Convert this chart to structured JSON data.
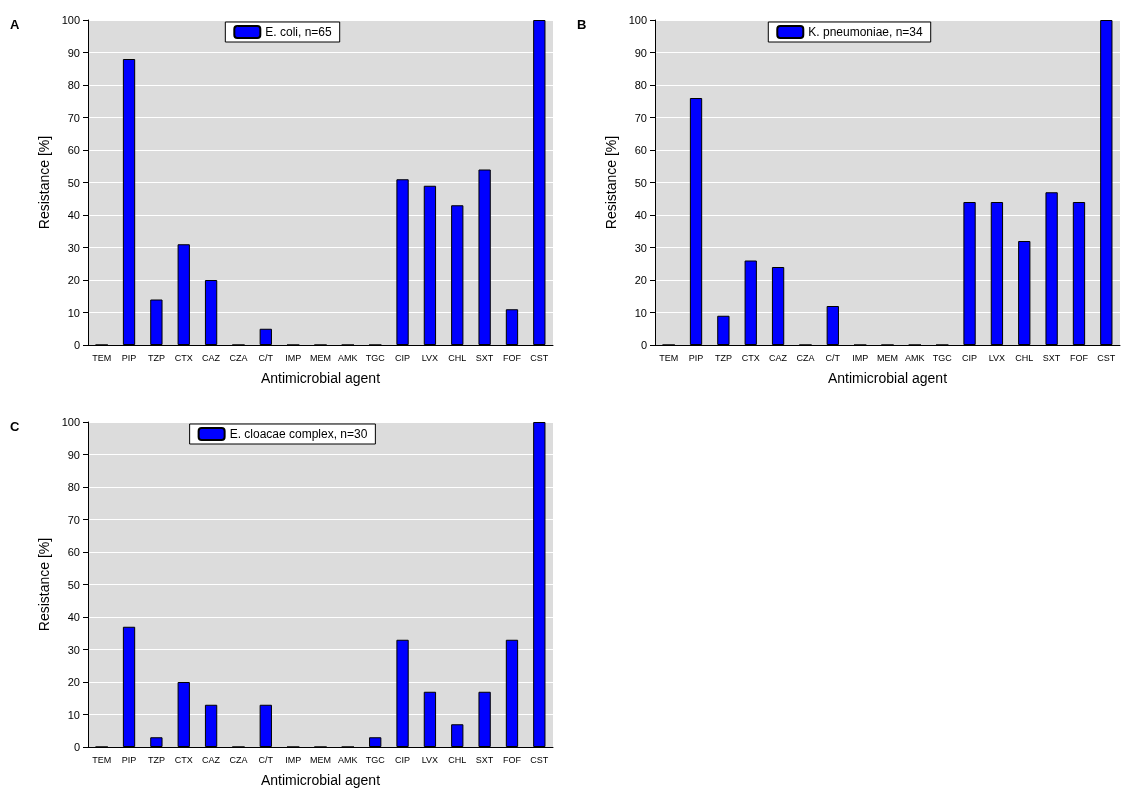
{
  "chart_data": [
    {
      "type": "bar",
      "annotations": [
        "A"
      ],
      "xlabel": "Antimicrobial agent",
      "ylabel": "Resistance [%]",
      "categories": [
        "TEM",
        "PIP",
        "TZP",
        "CTX",
        "CAZ",
        "CZA",
        "C/T",
        "IMP",
        "MEM",
        "AMK",
        "TGC",
        "CIP",
        "LVX",
        "CHL",
        "SXT",
        "FOF",
        "CST"
      ],
      "series": [
        {
          "name": "E. coli, n=65",
          "color": "#0000ff",
          "values": [
            0,
            88,
            14,
            31,
            20,
            0,
            5,
            0,
            0,
            0,
            0,
            51,
            49,
            43,
            54,
            11,
            100
          ]
        }
      ],
      "ylim": [
        0,
        100
      ],
      "yticks": [
        0,
        10,
        20,
        30,
        40,
        50,
        60,
        70,
        80,
        90,
        100
      ],
      "grid": "y",
      "legend": "top"
    },
    {
      "type": "bar",
      "annotations": [
        "B"
      ],
      "xlabel": "Antimicrobial agent",
      "ylabel": "Resistance [%]",
      "categories": [
        "TEM",
        "PIP",
        "TZP",
        "CTX",
        "CAZ",
        "CZA",
        "C/T",
        "IMP",
        "MEM",
        "AMK",
        "TGC",
        "CIP",
        "LVX",
        "CHL",
        "SXT",
        "FOF",
        "CST"
      ],
      "series": [
        {
          "name": "K. pneumoniae, n=34",
          "color": "#0000ff",
          "values": [
            0,
            76,
            9,
            26,
            24,
            0,
            12,
            0,
            0,
            0,
            0,
            44,
            44,
            32,
            47,
            44,
            100
          ]
        }
      ],
      "ylim": [
        0,
        100
      ],
      "yticks": [
        0,
        10,
        20,
        30,
        40,
        50,
        60,
        70,
        80,
        90,
        100
      ],
      "grid": "y",
      "legend": "top"
    },
    {
      "type": "bar",
      "annotations": [
        "C"
      ],
      "xlabel": "Antimicrobial agent",
      "ylabel": "Resistance [%]",
      "categories": [
        "TEM",
        "PIP",
        "TZP",
        "CTX",
        "CAZ",
        "CZA",
        "C/T",
        "IMP",
        "MEM",
        "AMK",
        "TGC",
        "CIP",
        "LVX",
        "CHL",
        "SXT",
        "FOF",
        "CST"
      ],
      "series": [
        {
          "name": "E. cloacae complex, n=30",
          "color": "#0000ff",
          "values": [
            0,
            37,
            3,
            20,
            13,
            0,
            13,
            0,
            0,
            0,
            3,
            33,
            17,
            7,
            17,
            33,
            100
          ]
        }
      ],
      "ylim": [
        0,
        100
      ],
      "yticks": [
        0,
        10,
        20,
        30,
        40,
        50,
        60,
        70,
        80,
        90,
        100
      ],
      "grid": "y",
      "legend": "top"
    }
  ]
}
